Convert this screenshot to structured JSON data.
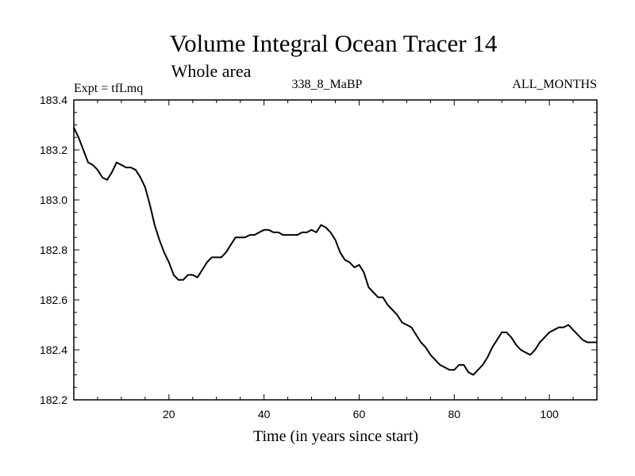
{
  "chart_data": {
    "type": "line",
    "title": "Volume Integral Ocean Tracer 14",
    "subtitle": "Whole area",
    "left_label": "Expt = tfLmq",
    "center_label": "338_8_MaBP",
    "right_label": "ALL_MONTHS",
    "xlabel": "Time (in years since start)",
    "ylabel": "",
    "xlim": [
      0,
      110
    ],
    "ylim": [
      182.2,
      183.4
    ],
    "x_ticks": [
      20,
      40,
      60,
      80,
      100
    ],
    "y_ticks": [
      182.2,
      182.4,
      182.6,
      182.8,
      183.0,
      183.2,
      183.4
    ],
    "y_tick_labels": [
      "182.2",
      "182.4",
      "182.6",
      "182.8",
      "183.0",
      "183.2",
      "183.4"
    ],
    "series": [
      {
        "x": [
          0,
          1,
          2,
          3,
          4,
          5,
          6,
          7,
          8,
          9,
          10,
          11,
          12,
          13,
          14,
          15,
          16,
          17,
          18,
          19,
          20,
          21,
          22,
          23,
          24,
          25,
          26,
          27,
          28,
          29,
          30,
          31,
          32,
          33,
          34,
          35,
          36,
          37,
          38,
          39,
          40,
          41,
          42,
          43,
          44,
          45,
          46,
          47,
          48,
          49,
          50,
          51,
          52,
          53,
          54,
          55,
          56,
          57,
          58,
          59,
          60,
          61,
          62,
          63,
          64,
          65,
          66,
          67,
          68,
          69,
          70,
          71,
          72,
          73,
          74,
          75,
          76,
          77,
          78,
          79,
          80,
          81,
          82,
          83,
          84,
          85,
          86,
          87,
          88,
          89,
          90,
          91,
          92,
          93,
          94,
          95,
          96,
          97,
          98,
          99,
          100,
          101,
          102,
          103,
          104,
          105,
          106,
          107,
          108,
          109,
          110
        ],
        "values": [
          183.29,
          183.25,
          183.2,
          183.15,
          183.14,
          183.12,
          183.09,
          183.08,
          183.11,
          183.15,
          183.14,
          183.13,
          183.13,
          183.12,
          183.09,
          183.05,
          182.98,
          182.9,
          182.84,
          182.79,
          182.75,
          182.7,
          182.68,
          182.68,
          182.7,
          182.7,
          182.69,
          182.72,
          182.75,
          182.77,
          182.77,
          182.77,
          182.79,
          182.82,
          182.85,
          182.85,
          182.85,
          182.86,
          182.86,
          182.87,
          182.88,
          182.88,
          182.87,
          182.87,
          182.86,
          182.86,
          182.86,
          182.86,
          182.87,
          182.87,
          182.88,
          182.87,
          182.9,
          182.89,
          182.87,
          182.84,
          182.79,
          182.76,
          182.75,
          182.73,
          182.74,
          182.71,
          182.65,
          182.63,
          182.61,
          182.61,
          182.58,
          182.56,
          182.54,
          182.51,
          182.5,
          182.49,
          182.46,
          182.43,
          182.41,
          182.38,
          182.36,
          182.34,
          182.33,
          182.32,
          182.32,
          182.34,
          182.34,
          182.31,
          182.3,
          182.32,
          182.34,
          182.37,
          182.41,
          182.44,
          182.47,
          182.47,
          182.45,
          182.42,
          182.4,
          182.39,
          182.38,
          182.4,
          182.43,
          182.45,
          182.47,
          182.48,
          182.49,
          182.49,
          182.5,
          182.48,
          182.46,
          182.44,
          182.43,
          182.43,
          182.43
        ]
      }
    ]
  }
}
